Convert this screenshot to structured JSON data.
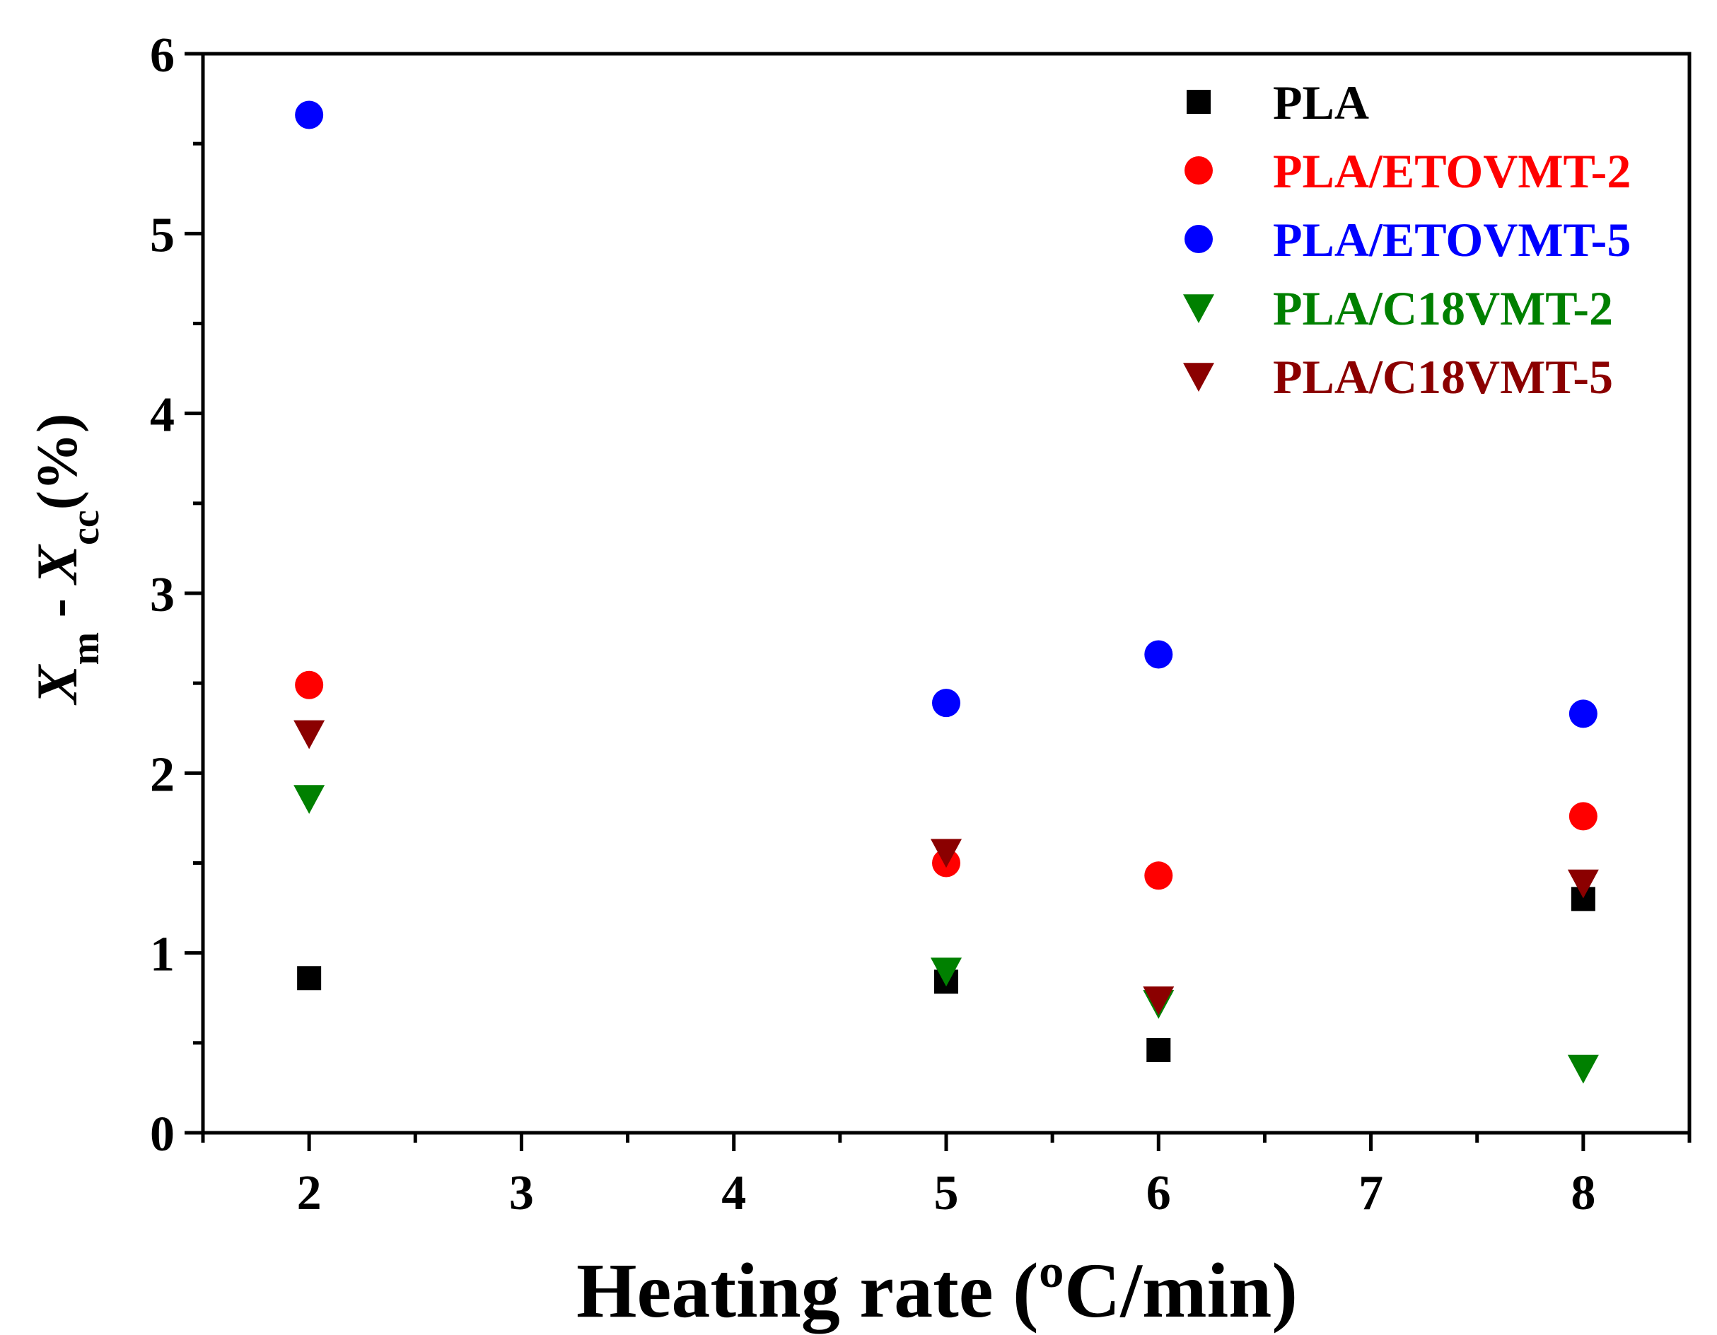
{
  "chart_data": {
    "type": "scatter",
    "xlabel": "Heating rate (ºC/min)",
    "ylabel": {
      "main1": "X",
      "sub1": "m",
      "sep": " - ",
      "main2": "X",
      "sub2": "cc",
      "unit": "(%)"
    },
    "xlim": [
      1.5,
      8.5
    ],
    "ylim": [
      0,
      6
    ],
    "xticks": [
      2,
      3,
      4,
      5,
      6,
      7,
      8
    ],
    "yticks": [
      0,
      1,
      2,
      3,
      4,
      5,
      6
    ],
    "x_minor_step": 0.5,
    "y_minor_step": 0.5,
    "legend_position": "top-right",
    "series": [
      {
        "name": "PLA",
        "marker": "square",
        "color": "#000000",
        "points": [
          [
            2,
            0.86
          ],
          [
            5,
            0.84
          ],
          [
            6,
            0.46
          ],
          [
            8,
            1.3
          ]
        ]
      },
      {
        "name": "PLA/ETOVMT-2",
        "marker": "circle",
        "color": "#ff0000",
        "points": [
          [
            2,
            2.49
          ],
          [
            5,
            1.5
          ],
          [
            6,
            1.43
          ],
          [
            8,
            1.76
          ]
        ]
      },
      {
        "name": "PLA/ETOVMT-5",
        "marker": "circle",
        "color": "#0000ff",
        "points": [
          [
            2,
            5.66
          ],
          [
            5,
            2.39
          ],
          [
            6,
            2.66
          ],
          [
            8,
            2.33
          ]
        ]
      },
      {
        "name": "PLA/C18VMT-2",
        "marker": "triangle-down",
        "color": "#008000",
        "points": [
          [
            2,
            1.86
          ],
          [
            5,
            0.9
          ],
          [
            6,
            0.72
          ],
          [
            8,
            0.36
          ]
        ]
      },
      {
        "name": "PLA/C18VMT-5",
        "marker": "triangle-down",
        "color": "#8b0000",
        "points": [
          [
            2,
            2.22
          ],
          [
            5,
            1.56
          ],
          [
            6,
            0.74
          ],
          [
            8,
            1.39
          ]
        ]
      }
    ]
  }
}
